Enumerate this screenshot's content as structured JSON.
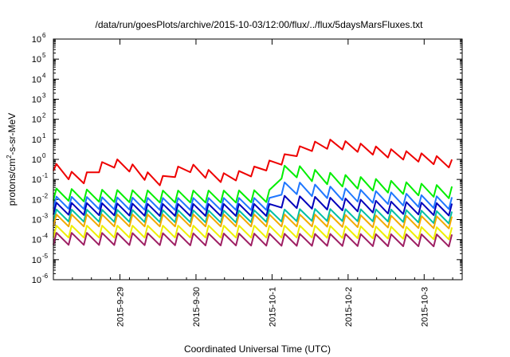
{
  "chart_data": {
    "type": "line",
    "title": "/data/run/goesPlots/archive/2015-10-03/12:00/flux/../flux/5daysMarsFluxes.txt",
    "xlabel": "Coordinated Universal Time (UTC)",
    "ylabel": "protons/cm2-s-sr-MeV",
    "ylabel_parts": {
      "base": "protons/cm",
      "sup": "2",
      "rest": "-s-sr-MeV"
    },
    "y_scale": "log",
    "ylim_exp": [
      -6,
      6
    ],
    "y_ticks": [
      {
        "base": "10",
        "exp": "6"
      },
      {
        "base": "10",
        "exp": "5"
      },
      {
        "base": "10",
        "exp": "4"
      },
      {
        "base": "10",
        "exp": "3"
      },
      {
        "base": "10",
        "exp": "2"
      },
      {
        "base": "10",
        "exp": "1"
      },
      {
        "base": "10",
        "exp": "0"
      },
      {
        "base": "10",
        "exp": "-1"
      },
      {
        "base": "10",
        "exp": "-2"
      },
      {
        "base": "10",
        "exp": "-3"
      },
      {
        "base": "10",
        "exp": "-4"
      },
      {
        "base": "10",
        "exp": "-5"
      },
      {
        "base": "10",
        "exp": "-6"
      }
    ],
    "x_range_days": [
      "2015-09-28T03:00",
      "2015-10-03T12:00"
    ],
    "x_ticks": [
      "2015-9-29",
      "2015-9-30",
      "2015-10-1",
      "2015-10-2",
      "2015-10-3"
    ],
    "grid": false,
    "legend": "none",
    "series": [
      {
        "color": "#ee0000",
        "period_hours": 4.8,
        "points": [
          [
            "2015-09-28T03:00",
            0.45
          ],
          [
            "2015-09-28T06:00",
            0.22
          ],
          [
            "2015-09-28T12:00",
            0.09
          ],
          [
            "2015-09-28T17:00",
            0.35
          ],
          [
            "2015-09-28T21:00",
            0.7
          ],
          [
            "2015-09-29T02:00",
            0.5
          ],
          [
            "2015-09-29T08:00",
            0.15
          ],
          [
            "2015-09-29T13:00",
            0.08
          ],
          [
            "2015-09-29T17:00",
            0.2
          ],
          [
            "2015-09-29T21:00",
            0.45
          ],
          [
            "2015-09-30T02:00",
            0.22
          ],
          [
            "2015-09-30T08:00",
            0.12
          ],
          [
            "2015-09-30T13:00",
            0.15
          ],
          [
            "2015-09-30T18:00",
            0.25
          ],
          [
            "2015-09-30T22:00",
            0.45
          ],
          [
            "2015-10-01T03:00",
            0.9
          ],
          [
            "2015-10-01T08:00",
            2.5
          ],
          [
            "2015-10-01T13:00",
            4.5
          ],
          [
            "2015-10-01T19:00",
            6
          ],
          [
            "2015-10-02T01:00",
            4.5
          ],
          [
            "2015-10-02T07:00",
            3
          ],
          [
            "2015-10-02T13:00",
            2
          ],
          [
            "2015-10-02T19:00",
            1.5
          ],
          [
            "2015-10-03T01:00",
            1.1
          ],
          [
            "2015-10-03T07:00",
            0.7
          ],
          [
            "2015-10-03T12:00",
            0.45
          ]
        ]
      },
      {
        "color": "#00ee00",
        "period_hours": 4.8,
        "points": [
          [
            "2015-09-28T03:00",
            0.018
          ],
          [
            "2015-09-28T12:00",
            0.016
          ],
          [
            "2015-09-28T21:00",
            0.015
          ],
          [
            "2015-09-29T12:00",
            0.014
          ],
          [
            "2015-09-30T12:00",
            0.014
          ],
          [
            "2015-10-01T00:00",
            0.015
          ],
          [
            "2015-10-01T00:30",
            0.17
          ],
          [
            "2015-10-01T06:00",
            0.3
          ],
          [
            "2015-10-01T12:00",
            0.17
          ],
          [
            "2015-10-01T18:00",
            0.11
          ],
          [
            "2015-10-02T00:00",
            0.08
          ],
          [
            "2015-10-02T12:00",
            0.045
          ],
          [
            "2015-10-03T00:00",
            0.03
          ],
          [
            "2015-10-03T12:00",
            0.02
          ]
        ]
      },
      {
        "color": "#1f77ff",
        "period_hours": 4.8,
        "points": [
          [
            "2015-09-28T03:00",
            0.007
          ],
          [
            "2015-09-29T12:00",
            0.006
          ],
          [
            "2015-10-01T00:00",
            0.006
          ],
          [
            "2015-10-01T00:30",
            0.03
          ],
          [
            "2015-10-01T06:00",
            0.04
          ],
          [
            "2015-10-01T12:00",
            0.03
          ],
          [
            "2015-10-02T00:00",
            0.017
          ],
          [
            "2015-10-02T12:00",
            0.012
          ],
          [
            "2015-10-03T00:00",
            0.008
          ],
          [
            "2015-10-03T12:00",
            0.006
          ]
        ]
      },
      {
        "color": "#0000bb",
        "period_hours": 4.8,
        "points": [
          [
            "2015-09-28T03:00",
            0.0035
          ],
          [
            "2015-09-29T12:00",
            0.003
          ],
          [
            "2015-10-01T00:00",
            0.003
          ],
          [
            "2015-10-01T00:30",
            0.008
          ],
          [
            "2015-10-01T12:00",
            0.007
          ],
          [
            "2015-10-02T00:00",
            0.0055
          ],
          [
            "2015-10-02T12:00",
            0.004
          ],
          [
            "2015-10-03T12:00",
            0.003
          ]
        ]
      },
      {
        "color": "#00bfa5",
        "period_hours": 4.8,
        "points": [
          [
            "2015-09-28T03:00",
            0.0016
          ],
          [
            "2015-09-30T12:00",
            0.0014
          ],
          [
            "2015-10-01T12:00",
            0.0017
          ],
          [
            "2015-10-02T12:00",
            0.0016
          ],
          [
            "2015-10-03T12:00",
            0.0012
          ]
        ]
      },
      {
        "color": "#f2a900",
        "period_hours": 4.8,
        "points": [
          [
            "2015-09-28T03:00",
            0.0009
          ],
          [
            "2015-10-01T12:00",
            0.0009
          ],
          [
            "2015-10-03T12:00",
            0.0007
          ]
        ]
      },
      {
        "color": "#eeee00",
        "period_hours": 4.8,
        "points": [
          [
            "2015-09-28T03:00",
            0.00025
          ],
          [
            "2015-10-01T12:00",
            0.00025
          ],
          [
            "2015-10-03T12:00",
            0.0002
          ]
        ]
      },
      {
        "color": "#9e1f63",
        "period_hours": 4.8,
        "points": [
          [
            "2015-09-28T03:00",
            0.00011
          ],
          [
            "2015-09-30T18:00",
            0.0001
          ],
          [
            "2015-10-03T12:00",
            9e-05
          ]
        ]
      }
    ]
  }
}
